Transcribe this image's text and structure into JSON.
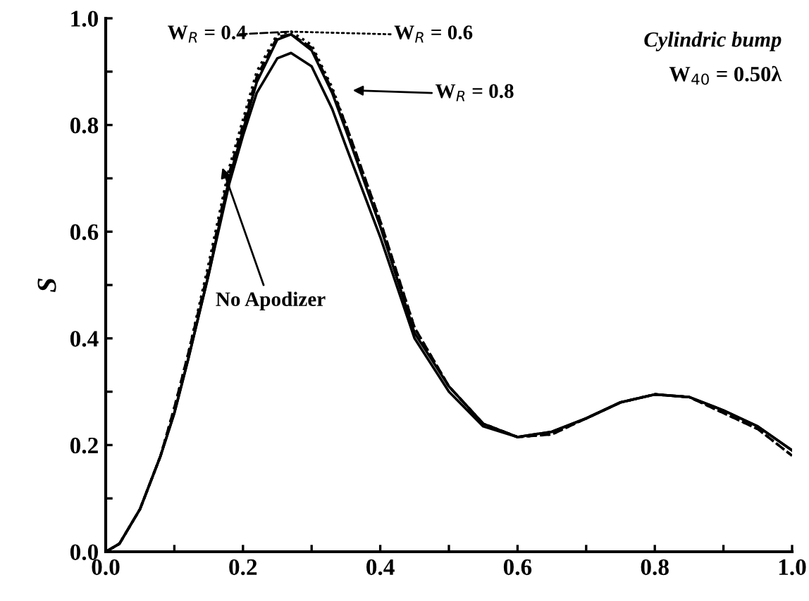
{
  "chart_data": {
    "type": "line",
    "ylabel": "S",
    "x": [
      0,
      0.02,
      0.05,
      0.08,
      0.1,
      0.12,
      0.15,
      0.18,
      0.2,
      0.22,
      0.25,
      0.27,
      0.3,
      0.33,
      0.35,
      0.4,
      0.45,
      0.5,
      0.55,
      0.6,
      0.65,
      0.7,
      0.75,
      0.8,
      0.85,
      0.9,
      0.95,
      1.0
    ],
    "series": [
      {
        "name": "No Apodizer",
        "color": "#000000",
        "line_style": "solid",
        "values": [
          0,
          0.015,
          0.08,
          0.18,
          0.26,
          0.36,
          0.52,
          0.7,
          0.79,
          0.88,
          0.96,
          0.97,
          0.94,
          0.86,
          0.79,
          0.61,
          0.41,
          0.31,
          0.24,
          0.215,
          0.225,
          0.25,
          0.28,
          0.295,
          0.29,
          0.265,
          0.235,
          0.19
        ]
      },
      {
        "name": "W$_{R}$ = 0.4",
        "color": "#000000",
        "line_style": "dashed",
        "values": [
          0,
          0.015,
          0.08,
          0.18,
          0.27,
          0.37,
          0.53,
          0.71,
          0.8,
          0.89,
          0.965,
          0.97,
          0.945,
          0.865,
          0.8,
          0.62,
          0.42,
          0.31,
          0.24,
          0.215,
          0.22,
          0.25,
          0.28,
          0.295,
          0.29,
          0.26,
          0.23,
          0.18
        ]
      },
      {
        "name": "W$_{R}$ = 0.6",
        "color": "#000000",
        "line_style": "dotted",
        "values": [
          0,
          0.015,
          0.08,
          0.18,
          0.27,
          0.37,
          0.54,
          0.72,
          0.81,
          0.9,
          0.97,
          0.975,
          0.95,
          0.87,
          0.8,
          0.62,
          0.42,
          0.31,
          0.24,
          0.215,
          0.22,
          0.25,
          0.28,
          0.295,
          0.29,
          0.26,
          0.23,
          0.18
        ]
      },
      {
        "name": "W$_{R}$ = 0.8",
        "color": "#000000",
        "line_style": "solid",
        "values": [
          0,
          0.015,
          0.08,
          0.18,
          0.26,
          0.36,
          0.52,
          0.69,
          0.78,
          0.86,
          0.925,
          0.935,
          0.91,
          0.83,
          0.76,
          0.59,
          0.4,
          0.3,
          0.235,
          0.215,
          0.225,
          0.25,
          0.28,
          0.295,
          0.29,
          0.265,
          0.235,
          0.19
        ]
      }
    ],
    "annotations": [
      "Cylindric bump",
      "W$_{40}$ = 0.50λ"
    ],
    "xlim": [
      0,
      1
    ],
    "ylim": [
      0,
      1
    ],
    "xticks": [
      {
        "value": 0.0,
        "label": "0.0"
      },
      {
        "value": 0.1,
        "label": null
      },
      {
        "value": 0.2,
        "label": "0.2"
      },
      {
        "value": 0.3,
        "label": null
      },
      {
        "value": 0.4,
        "label": "0.4"
      },
      {
        "value": 0.5,
        "label": null
      },
      {
        "value": 0.6,
        "label": "0.6"
      },
      {
        "value": 0.7,
        "label": null
      },
      {
        "value": 0.8,
        "label": "0.8"
      },
      {
        "value": 0.9,
        "label": null
      },
      {
        "value": 1.0,
        "label": "1.0"
      }
    ],
    "yticks": [
      {
        "value": 0.0,
        "label": "0.0"
      },
      {
        "value": 0.1,
        "label": null
      },
      {
        "value": 0.2,
        "label": "0.2"
      },
      {
        "value": 0.3,
        "label": null
      },
      {
        "value": 0.4,
        "label": "0.4"
      },
      {
        "value": 0.5,
        "label": null
      },
      {
        "value": 0.6,
        "label": "0.6"
      },
      {
        "value": 0.7,
        "label": null
      },
      {
        "value": 0.8,
        "label": "0.8"
      },
      {
        "value": 0.9,
        "label": null
      },
      {
        "value": 1.0,
        "label": "1.0"
      }
    ],
    "grid": false,
    "legend": "top"
  }
}
